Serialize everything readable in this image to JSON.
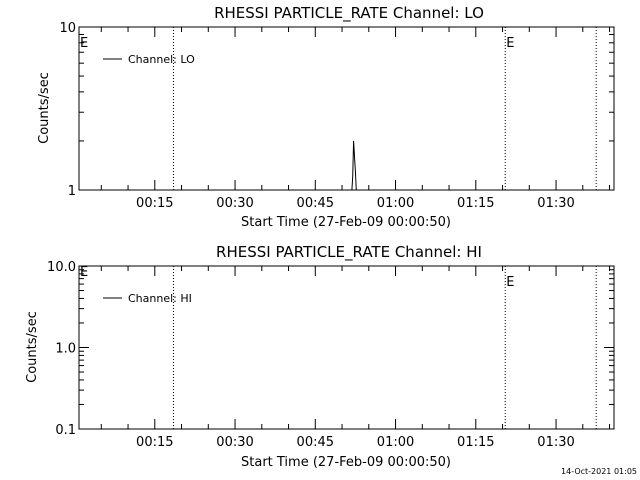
{
  "footer": {
    "timestamp": "14-Oct-2021 01:05"
  },
  "chart_data": [
    {
      "type": "line",
      "title": "RHESSI PARTICLE_RATE Channel: LO",
      "xlabel": "Start Time (27-Feb-09 00:00:50)",
      "ylabel": "Counts/sec",
      "y_scale": "log",
      "ylim": [
        1,
        10
      ],
      "y_ticks": [
        {
          "value": 1,
          "label": "1"
        },
        {
          "value": 10,
          "label": "10"
        }
      ],
      "xlim": [
        "00:00:50",
        "01:40:50"
      ],
      "x_ticks": [
        {
          "time": "00:15",
          "label": "00:15"
        },
        {
          "time": "00:30",
          "label": "00:30"
        },
        {
          "time": "00:45",
          "label": "00:45"
        },
        {
          "time": "01:00",
          "label": "01:00"
        },
        {
          "time": "01:15",
          "label": "01:15"
        },
        {
          "time": "01:30",
          "label": "01:30"
        }
      ],
      "series": [
        {
          "name": "Channel: LO",
          "time": [
            "00:51:50",
            "00:52:00",
            "00:52:10",
            "00:52:20",
            "00:52:30",
            "00:52:40"
          ],
          "values": [
            1,
            1.2,
            2.0,
            1.6,
            1.3,
            1
          ]
        }
      ],
      "markers": [
        {
          "time": "00:18:30",
          "label": ""
        },
        {
          "time": "01:20:30",
          "label": "E"
        },
        {
          "time": "01:37:30",
          "label": ""
        }
      ],
      "start_label": "E",
      "legend": "top-left",
      "grid": false
    },
    {
      "type": "line",
      "title": "RHESSI PARTICLE_RATE Channel: HI",
      "xlabel": "Start Time (27-Feb-09 00:00:50)",
      "ylabel": "Counts/sec",
      "y_scale": "log",
      "ylim": [
        0.1,
        10
      ],
      "y_ticks": [
        {
          "value": 0.1,
          "label": "0.1"
        },
        {
          "value": 1,
          "label": "1.0"
        },
        {
          "value": 10,
          "label": "10.0"
        }
      ],
      "xlim": [
        "00:00:50",
        "01:40:50"
      ],
      "x_ticks": [
        {
          "time": "00:15",
          "label": "00:15"
        },
        {
          "time": "00:30",
          "label": "00:30"
        },
        {
          "time": "00:45",
          "label": "00:45"
        },
        {
          "time": "01:00",
          "label": "01:00"
        },
        {
          "time": "01:15",
          "label": "01:15"
        },
        {
          "time": "01:30",
          "label": "01:30"
        }
      ],
      "series": [
        {
          "name": "Channel: HI",
          "time": [],
          "values": []
        }
      ],
      "markers": [
        {
          "time": "00:18:30",
          "label": ""
        },
        {
          "time": "01:20:30",
          "label": "E"
        },
        {
          "time": "01:37:30",
          "label": ""
        }
      ],
      "start_label": "E",
      "legend": "top-left",
      "grid": false
    }
  ]
}
